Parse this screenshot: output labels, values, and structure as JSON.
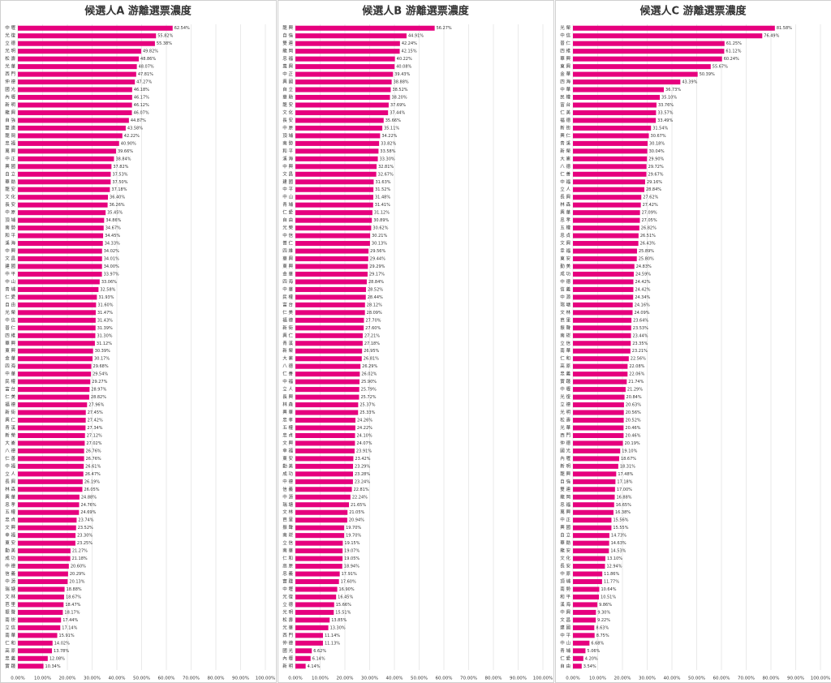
{
  "chart_data": [
    {
      "type": "bar",
      "orientation": "horizontal",
      "title": "候選人A 游離選票濃度",
      "color": "#e6007e",
      "grid": true,
      "xlim": [
        0,
        100
      ],
      "xticks": [
        {
          "value": 0,
          "label": "0.00%"
        },
        {
          "value": 10,
          "label": "10.00%"
        },
        {
          "value": 20,
          "label": "20.00%"
        },
        {
          "value": 30,
          "label": "30.00%"
        },
        {
          "value": 40,
          "label": "40.00%"
        },
        {
          "value": 50,
          "label": "50.00%"
        },
        {
          "value": 60,
          "label": "60.00%"
        },
        {
          "value": 70,
          "label": "70.00%"
        },
        {
          "value": 80,
          "label": "80.00%"
        },
        {
          "value": 90,
          "label": "90.00%"
        },
        {
          "value": 100,
          "label": "100.00%"
        }
      ],
      "categories": [
        "中 壢",
        "光 復",
        "立 德",
        "光 明",
        "松 壽",
        "光 華",
        "西 門",
        "仲 德",
        "國 光",
        "內 壢",
        "新 明",
        "龍 興",
        "自 強",
        "雙 連",
        "龍 岡",
        "忠 福",
        "萬 興",
        "中 正",
        "興 國",
        "自 立",
        "華 勛",
        "龍 安",
        "文 化",
        "長 安",
        "中 原",
        "頂 埔",
        "南 勢",
        "和 平",
        "溪 海",
        "中 興",
        "文 昌",
        "建 國",
        "中 平",
        "中 山",
        "青 埔",
        "仁 愛",
        "自 由",
        "光 榮",
        "中 信",
        "普 仁",
        "四 維",
        "華 興",
        "東 興",
        "金 華",
        "四 海",
        "中 華",
        "民 權",
        "富 台",
        "仁 美",
        "福 德",
        "新 街",
        "興 仁",
        "青 溪",
        "新 榮",
        "大 崙",
        "八 德",
        "仁 善",
        "中 福",
        "立 人",
        "長 興",
        "林 森",
        "興 華",
        "忠 孝",
        "五 權",
        "忠 貞",
        "文 興",
        "幸 福",
        "東 安",
        "勤 美",
        "成 功",
        "中 德",
        "信 義",
        "中 源",
        "瑞 塘",
        "文 林",
        "芭 里",
        "振 聲",
        "南 崁",
        "立 信",
        "南 華",
        "仁 和",
        "高 原",
        "忠 義",
        "實 踐"
      ],
      "values": [
        62.54,
        55.82,
        55.38,
        49.82,
        48.86,
        48.07,
        47.81,
        47.27,
        46.18,
        46.17,
        46.12,
        46.07,
        44.87,
        43.58,
        42.22,
        40.9,
        39.66,
        38.84,
        37.82,
        37.53,
        37.5,
        37.18,
        36.4,
        36.26,
        35.45,
        34.86,
        34.67,
        34.45,
        34.33,
        34.02,
        34.01,
        34.0,
        33.97,
        33.06,
        32.58,
        31.93,
        31.6,
        31.47,
        31.43,
        31.39,
        31.3,
        31.12,
        30.39,
        30.17,
        29.68,
        29.54,
        29.27,
        28.97,
        28.82,
        27.96,
        27.45,
        27.42,
        27.34,
        27.12,
        27.02,
        26.76,
        26.76,
        26.61,
        26.47,
        26.19,
        26.05,
        24.88,
        24.76,
        24.69,
        23.74,
        23.52,
        23.3,
        23.25,
        21.27,
        21.18,
        20.6,
        20.29,
        20.13,
        18.88,
        18.67,
        18.47,
        18.17,
        17.44,
        17.14,
        15.91,
        14.02,
        13.78,
        12.08,
        10.34
      ],
      "value_labels": [
        "62.54%",
        "55.82%",
        "55.38%",
        "49.82%",
        "48.86%",
        "48.07%",
        "47.81%",
        "47.27%",
        "46.18%",
        "46.17%",
        "46.12%",
        "46.07%",
        "44.87%",
        "43.58%",
        "42.22%",
        "40.90%",
        "39.66%",
        "38.84%",
        "37.82%",
        "37.53%",
        "37.50%",
        "37.18%",
        "36.40%",
        "36.26%",
        "35.45%",
        "34.86%",
        "34.67%",
        "34.45%",
        "34.33%",
        "34.02%",
        "34.01%",
        "34.00%",
        "33.97%",
        "33.06%",
        "32.58%",
        "31.93%",
        "31.60%",
        "31.47%",
        "31.43%",
        "31.39%",
        "31.30%",
        "31.12%",
        "30.39%",
        "30.17%",
        "29.68%",
        "29.54%",
        "29.27%",
        "28.97%",
        "28.82%",
        "27.96%",
        "27.45%",
        "27.42%",
        "27.34%",
        "27.12%",
        "27.02%",
        "26.76%",
        "26.76%",
        "26.61%",
        "26.47%",
        "26.19%",
        "26.05%",
        "24.88%",
        "24.76%",
        "24.69%",
        "23.74%",
        "23.52%",
        "23.30%",
        "23.25%",
        "21.27%",
        "21.18%",
        "20.60%",
        "20.29%",
        "20.13%",
        "18.88%",
        "18.67%",
        "18.47%",
        "18.17%",
        "17.44%",
        "17.14%",
        "15.91%",
        "14.02%",
        "13.78%",
        "12.08%",
        "10.34%"
      ]
    },
    {
      "type": "bar",
      "orientation": "horizontal",
      "title": "候選人B 游離選票濃度",
      "color": "#e6007e",
      "grid": true,
      "xlim": [
        0,
        100
      ],
      "xticks": [
        {
          "value": 0,
          "label": "0.00%"
        },
        {
          "value": 10,
          "label": "10.00%"
        },
        {
          "value": 20,
          "label": "20.00%"
        },
        {
          "value": 30,
          "label": "30.00%"
        },
        {
          "value": 40,
          "label": "40.00%"
        },
        {
          "value": 50,
          "label": "50.00%"
        },
        {
          "value": 60,
          "label": "60.00%"
        },
        {
          "value": 70,
          "label": "70.00%"
        },
        {
          "value": 80,
          "label": "80.00%"
        },
        {
          "value": 90,
          "label": "90.00%"
        },
        {
          "value": 100,
          "label": "100.00%"
        }
      ],
      "categories": [
        "龍 興",
        "自 強",
        "雙 連",
        "龍 岡",
        "忠 福",
        "萬 興",
        "中 正",
        "興 國",
        "自 立",
        "華 勛",
        "龍 安",
        "文 化",
        "長 安",
        "中 原",
        "頂 埔",
        "南 勢",
        "和 平",
        "溪 海",
        "中 興",
        "文 昌",
        "建 國",
        "中 平",
        "中 山",
        "青 埔",
        "仁 愛",
        "自 由",
        "光 榮",
        "中 信",
        "普 仁",
        "四 維",
        "華 興",
        "東 興",
        "金 華",
        "四 海",
        "中 華",
        "民 權",
        "富 台",
        "仁 美",
        "福 德",
        "新 街",
        "興 仁",
        "青 溪",
        "新 榮",
        "大 崙",
        "八 德",
        "仁 善",
        "中 福",
        "立 人",
        "長 興",
        "林 森",
        "興 華",
        "忠 孝",
        "五 權",
        "忠 貞",
        "文 興",
        "幸 福",
        "東 安",
        "勤 美",
        "成 功",
        "中 德",
        "信 義",
        "中 源",
        "瑞 塘",
        "文 林",
        "芭 里",
        "振 聲",
        "南 崁",
        "立 信",
        "南 華",
        "仁 和",
        "高 原",
        "忠 義",
        "實 踐",
        "中 壢",
        "光 復",
        "立 德",
        "光 明",
        "松 壽",
        "光 華",
        "西 門",
        "仲 德",
        "國 光",
        "內 壢",
        "新 明"
      ],
      "values": [
        56.27,
        44.91,
        42.24,
        42.15,
        40.22,
        40.08,
        39.43,
        38.88,
        38.52,
        38.2,
        37.69,
        37.44,
        35.66,
        35.11,
        34.22,
        33.82,
        33.58,
        33.3,
        32.81,
        32.67,
        31.63,
        31.52,
        31.48,
        31.41,
        31.12,
        30.89,
        30.62,
        30.21,
        30.13,
        29.56,
        29.44,
        29.29,
        29.17,
        28.84,
        28.52,
        28.44,
        28.12,
        28.09,
        27.7,
        27.6,
        27.21,
        27.18,
        26.95,
        26.81,
        26.29,
        26.02,
        25.9,
        25.79,
        25.72,
        25.37,
        25.33,
        24.26,
        24.22,
        24.1,
        24.07,
        23.91,
        23.42,
        23.29,
        23.28,
        23.24,
        22.81,
        22.24,
        21.65,
        21.05,
        20.94,
        19.7,
        19.7,
        19.15,
        19.07,
        19.05,
        18.94,
        17.91,
        17.6,
        16.9,
        16.45,
        15.66,
        15.51,
        13.85,
        13.3,
        11.14,
        11.13,
        6.62,
        6.14,
        4.14
      ],
      "value_labels": [
        "56.27%",
        "44.91%",
        "42.24%",
        "42.15%",
        "40.22%",
        "40.08%",
        "39.43%",
        "38.88%",
        "38.52%",
        "38.20%",
        "37.69%",
        "37.44%",
        "35.66%",
        "35.11%",
        "34.22%",
        "33.82%",
        "33.58%",
        "33.30%",
        "32.81%",
        "32.67%",
        "31.63%",
        "31.52%",
        "31.48%",
        "31.41%",
        "31.12%",
        "30.89%",
        "30.62%",
        "30.21%",
        "30.13%",
        "29.56%",
        "29.44%",
        "29.29%",
        "29.17%",
        "28.84%",
        "28.52%",
        "28.44%",
        "28.12%",
        "28.09%",
        "27.70%",
        "27.60%",
        "27.21%",
        "27.18%",
        "26.95%",
        "26.81%",
        "26.29%",
        "26.02%",
        "25.90%",
        "25.79%",
        "25.72%",
        "25.37%",
        "25.33%",
        "24.26%",
        "24.22%",
        "24.10%",
        "24.07%",
        "23.91%",
        "23.42%",
        "23.29%",
        "23.28%",
        "23.24%",
        "22.81%",
        "22.24%",
        "21.65%",
        "21.05%",
        "20.94%",
        "19.70%",
        "19.70%",
        "19.15%",
        "19.07%",
        "19.05%",
        "18.94%",
        "17.91%",
        "17.60%",
        "16.90%",
        "16.45%",
        "15.66%",
        "15.51%",
        "13.85%",
        "13.30%",
        "11.14%",
        "11.13%",
        "6.62%",
        "6.14%",
        "4.14%"
      ]
    },
    {
      "type": "bar",
      "orientation": "horizontal",
      "title": "候選人C 游離選票濃度",
      "color": "#e6007e",
      "grid": true,
      "xlim": [
        0,
        100
      ],
      "xticks": [
        {
          "value": 0,
          "label": "0.00%"
        },
        {
          "value": 10,
          "label": "10.00%"
        },
        {
          "value": 20,
          "label": "20.00%"
        },
        {
          "value": 30,
          "label": "30.00%"
        },
        {
          "value": 40,
          "label": "40.00%"
        },
        {
          "value": 50,
          "label": "50.00%"
        },
        {
          "value": 60,
          "label": "60.00%"
        },
        {
          "value": 70,
          "label": "70.00%"
        },
        {
          "value": 80,
          "label": "80.00%"
        },
        {
          "value": 90,
          "label": "90.00%"
        },
        {
          "value": 100,
          "label": "100.00%"
        }
      ],
      "categories": [
        "光 榮",
        "中 信",
        "普 仁",
        "四 維",
        "華 興",
        "東 興",
        "金 華",
        "四 海",
        "中 華",
        "民 權",
        "富 台",
        "仁 美",
        "福 德",
        "新 街",
        "興 仁",
        "青 溪",
        "新 榮",
        "大 崙",
        "八 德",
        "仁 善",
        "中 福",
        "立 人",
        "長 興",
        "林 森",
        "興 華",
        "忠 孝",
        "五 權",
        "忠 貞",
        "文 興",
        "幸 福",
        "東 安",
        "勤 美",
        "成 功",
        "中 德",
        "信 義",
        "中 源",
        "瑞 塘",
        "文 林",
        "芭 里",
        "振 聲",
        "南 崁",
        "立 信",
        "南 華",
        "仁 和",
        "高 原",
        "忠 義",
        "實 踐",
        "中 壢",
        "光 復",
        "立 德",
        "光 明",
        "松 壽",
        "光 華",
        "西 門",
        "仲 德",
        "國 光",
        "內 壢",
        "新 明",
        "龍 興",
        "自 強",
        "雙 連",
        "龍 岡",
        "忠 福",
        "萬 興",
        "中 正",
        "興 國",
        "自 立",
        "華 勛",
        "龍 安",
        "文 化",
        "長 安",
        "中 原",
        "頂 埔",
        "南 勢",
        "和 平",
        "溪 海",
        "中 興",
        "文 昌",
        "建 國",
        "中 平",
        "中 山",
        "青 埔",
        "仁 愛",
        "自 由"
      ],
      "values": [
        81.58,
        76.49,
        61.25,
        61.12,
        60.24,
        55.67,
        50.39,
        43.39,
        36.73,
        35.1,
        33.76,
        33.57,
        33.49,
        31.54,
        30.67,
        30.18,
        30.04,
        29.9,
        29.72,
        29.67,
        29.16,
        28.84,
        27.62,
        27.42,
        27.09,
        27.05,
        26.82,
        26.51,
        26.43,
        25.89,
        25.8,
        24.83,
        24.59,
        24.42,
        24.42,
        24.34,
        24.16,
        24.09,
        23.64,
        23.53,
        23.44,
        23.35,
        23.21,
        22.56,
        22.08,
        22.06,
        21.74,
        21.29,
        20.84,
        20.63,
        20.56,
        20.52,
        20.46,
        20.46,
        20.19,
        19.1,
        18.67,
        18.31,
        17.48,
        17.18,
        17.0,
        16.88,
        16.65,
        16.38,
        15.56,
        15.55,
        14.73,
        14.63,
        14.53,
        13.1,
        12.94,
        11.86,
        11.77,
        10.64,
        10.51,
        9.86,
        9.3,
        9.22,
        8.63,
        8.75,
        6.68,
        5.06,
        4.2,
        3.54
      ],
      "value_labels": [
        "81.58%",
        "76.49%",
        "61.25%",
        "61.12%",
        "60.24%",
        "55.67%",
        "50.39%",
        "43.39%",
        "36.73%",
        "35.10%",
        "33.76%",
        "33.57%",
        "33.49%",
        "31.54%",
        "30.67%",
        "30.18%",
        "30.04%",
        "29.90%",
        "29.72%",
        "29.67%",
        "29.16%",
        "28.84%",
        "27.62%",
        "27.42%",
        "27.09%",
        "27.05%",
        "26.82%",
        "26.51%",
        "26.43%",
        "25.89%",
        "25.80%",
        "24.83%",
        "24.59%",
        "24.42%",
        "24.42%",
        "24.34%",
        "24.16%",
        "24.09%",
        "23.64%",
        "23.53%",
        "23.44%",
        "23.35%",
        "23.21%",
        "22.56%",
        "22.08%",
        "22.06%",
        "21.74%",
        "21.29%",
        "20.84%",
        "20.63%",
        "20.56%",
        "20.52%",
        "20.46%",
        "20.46%",
        "20.19%",
        "19.10%",
        "18.67%",
        "18.31%",
        "17.48%",
        "17.18%",
        "17.00%",
        "16.88%",
        "16.65%",
        "16.38%",
        "15.56%",
        "15.55%",
        "14.73%",
        "14.63%",
        "14.53%",
        "13.10%",
        "12.94%",
        "11.86%",
        "11.77%",
        "10.64%",
        "10.51%",
        "9.86%",
        "9.30%",
        "9.22%",
        "8.63%",
        "8.75%",
        "6.68%",
        "5.06%",
        "4.20%",
        "3.54%"
      ]
    }
  ]
}
